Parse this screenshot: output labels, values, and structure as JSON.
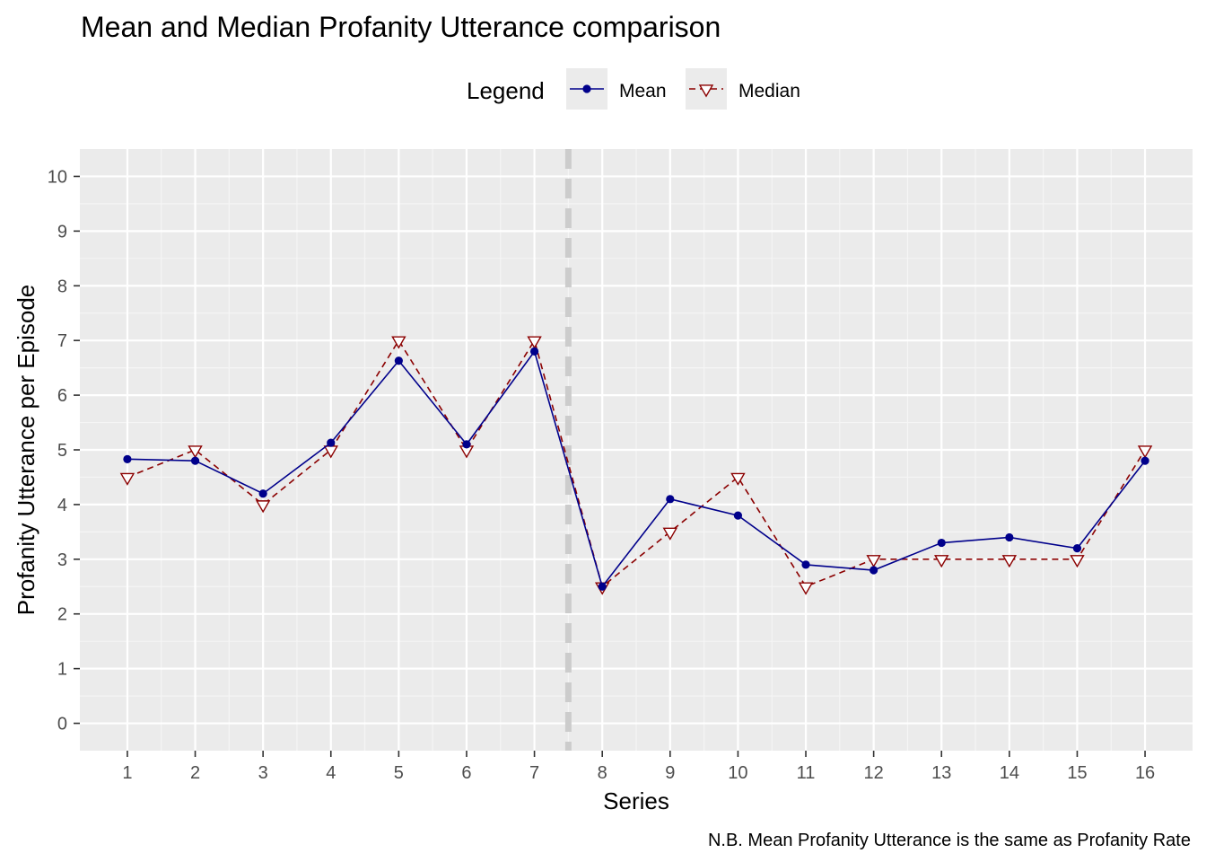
{
  "chart_data": {
    "type": "line",
    "title": "Mean and Median Profanity Utterance comparison",
    "xlabel": "Series",
    "ylabel": "Profanity Utterance per Episode",
    "caption": "N.B. Mean Profanity Utterance is the same as Profanity Rate",
    "legend": {
      "title": "Legend",
      "position": "top"
    },
    "x": [
      1,
      2,
      3,
      4,
      5,
      6,
      7,
      8,
      9,
      10,
      11,
      12,
      13,
      14,
      15,
      16
    ],
    "xticks": [
      "1",
      "2",
      "3",
      "4",
      "5",
      "6",
      "7",
      "8",
      "9",
      "10",
      "11",
      "12",
      "13",
      "14",
      "15",
      "16"
    ],
    "yticks": [
      "0",
      "1",
      "2",
      "3",
      "4",
      "5",
      "6",
      "7",
      "8",
      "9",
      "10"
    ],
    "xlim": [
      0.3,
      16.7
    ],
    "ylim": [
      -0.5,
      10.5
    ],
    "grid": true,
    "reference_line": {
      "x": 7.5,
      "style": "dashed",
      "color": "#cccccc"
    },
    "series": [
      {
        "name": "Mean",
        "color": "#00008b",
        "line_style": "solid",
        "marker": "filled-circle",
        "values": [
          4.83,
          4.8,
          4.2,
          5.13,
          6.63,
          5.1,
          6.8,
          2.5,
          4.1,
          3.8,
          2.9,
          2.8,
          3.3,
          3.4,
          3.2,
          4.8
        ]
      },
      {
        "name": "Median",
        "color": "#8b0000",
        "line_style": "dashed",
        "marker": "open-down-triangle",
        "values": [
          4.5,
          5.0,
          4.0,
          5.0,
          7.0,
          5.0,
          7.0,
          2.5,
          3.5,
          4.5,
          2.5,
          3.0,
          3.0,
          3.0,
          3.0,
          5.0
        ]
      }
    ]
  }
}
